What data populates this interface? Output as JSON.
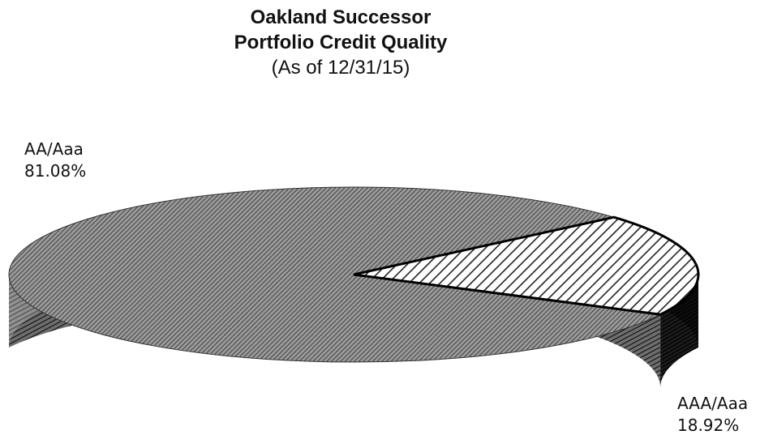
{
  "chart_data": {
    "type": "pie",
    "title": "Oakland Successor",
    "subtitle": "Portfolio Credit Quality",
    "date_note": "(As of 12/31/15)",
    "categories": [
      "AA/Aaa",
      "AAA/Aaa"
    ],
    "values": [
      81.08,
      18.92
    ],
    "value_labels": [
      "81.08%",
      "18.92%"
    ],
    "style": "3d",
    "legend": "none"
  }
}
